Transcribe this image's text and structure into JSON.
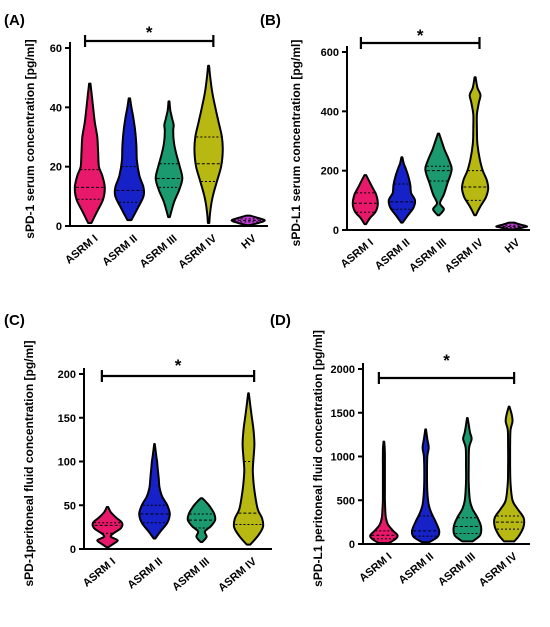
{
  "figure": {
    "colors": {
      "ASRM I": "#e8186b",
      "ASRM II": "#1622c8",
      "ASRM III": "#1a9a6e",
      "ASRM IV": "#b8b812",
      "HV": "#c03ed6"
    }
  },
  "chart_data": [
    {
      "panel": "(A)",
      "type": "violin",
      "ylabel": "sPD-1 serum concentration [pg/ml]",
      "yticks": [
        0,
        20,
        40,
        60
      ],
      "ylim": [
        0,
        60
      ],
      "significance": "*",
      "categories": [
        "ASRM I",
        "ASRM II",
        "ASRM III",
        "ASRM IV",
        "HV"
      ],
      "violins": [
        {
          "category": "ASRM I",
          "min": 1,
          "max": 48,
          "median": 13,
          "q1": 9,
          "q3": 19,
          "profile": [
            [
              1,
              0.1
            ],
            [
              5,
              0.45
            ],
            [
              9,
              0.8
            ],
            [
              13,
              0.9
            ],
            [
              17,
              0.75
            ],
            [
              20,
              0.55
            ],
            [
              25,
              0.5
            ],
            [
              30,
              0.45
            ],
            [
              35,
              0.3
            ],
            [
              40,
              0.2
            ],
            [
              45,
              0.1
            ],
            [
              48,
              0.04
            ]
          ]
        },
        {
          "category": "ASRM II",
          "min": 2,
          "max": 43,
          "median": 12,
          "q1": 8,
          "q3": 20,
          "profile": [
            [
              2,
              0.12
            ],
            [
              6,
              0.5
            ],
            [
              10,
              0.85
            ],
            [
              13,
              0.85
            ],
            [
              17,
              0.6
            ],
            [
              22,
              0.45
            ],
            [
              27,
              0.42
            ],
            [
              32,
              0.35
            ],
            [
              37,
              0.22
            ],
            [
              40,
              0.12
            ],
            [
              43,
              0.04
            ]
          ]
        },
        {
          "category": "ASRM III",
          "min": 3,
          "max": 42,
          "median": 16,
          "q1": 13,
          "q3": 21,
          "profile": [
            [
              3,
              0.05
            ],
            [
              8,
              0.3
            ],
            [
              12,
              0.6
            ],
            [
              16,
              0.8
            ],
            [
              20,
              0.65
            ],
            [
              24,
              0.45
            ],
            [
              28,
              0.3
            ],
            [
              32,
              0.25
            ],
            [
              34,
              0.28
            ],
            [
              36,
              0.2
            ],
            [
              39,
              0.08
            ],
            [
              42,
              0.03
            ]
          ]
        },
        {
          "category": "ASRM IV",
          "min": 1,
          "max": 54,
          "median": 21,
          "q1": 15,
          "q3": 30,
          "profile": [
            [
              1,
              0.04
            ],
            [
              5,
              0.1
            ],
            [
              10,
              0.25
            ],
            [
              15,
              0.5
            ],
            [
              20,
              0.75
            ],
            [
              25,
              0.85
            ],
            [
              30,
              0.8
            ],
            [
              35,
              0.6
            ],
            [
              40,
              0.4
            ],
            [
              45,
              0.22
            ],
            [
              50,
              0.1
            ],
            [
              54,
              0.03
            ]
          ]
        },
        {
          "category": "HV",
          "min": 0.3,
          "max": 3.5,
          "median": 1.9,
          "q1": 1.4,
          "q3": 2.4,
          "profile": [
            [
              0.3,
              0.1
            ],
            [
              1,
              0.6
            ],
            [
              1.9,
              1.0
            ],
            [
              2.7,
              0.6
            ],
            [
              3.5,
              0.1
            ]
          ]
        }
      ]
    },
    {
      "panel": "(B)",
      "type": "violin",
      "ylabel": "sPD-L1 serum concentration [pg/ml]",
      "yticks": [
        0,
        200,
        400,
        600
      ],
      "ylim": [
        0,
        600
      ],
      "significance": "*",
      "categories": [
        "ASRM I",
        "ASRM II",
        "ASRM III",
        "ASRM IV",
        "HV"
      ],
      "violins": [
        {
          "category": "ASRM I",
          "min": 20,
          "max": 185,
          "median": 90,
          "q1": 60,
          "q3": 125,
          "profile": [
            [
              20,
              0.05
            ],
            [
              40,
              0.3
            ],
            [
              60,
              0.65
            ],
            [
              80,
              0.8
            ],
            [
              100,
              0.8
            ],
            [
              120,
              0.7
            ],
            [
              140,
              0.5
            ],
            [
              160,
              0.3
            ],
            [
              185,
              0.05
            ]
          ]
        },
        {
          "category": "ASRM II",
          "min": 25,
          "max": 245,
          "median": 95,
          "q1": 70,
          "q3": 155,
          "profile": [
            [
              25,
              0.05
            ],
            [
              50,
              0.4
            ],
            [
              75,
              0.75
            ],
            [
              100,
              0.85
            ],
            [
              125,
              0.6
            ],
            [
              150,
              0.55
            ],
            [
              175,
              0.45
            ],
            [
              200,
              0.3
            ],
            [
              225,
              0.12
            ],
            [
              245,
              0.03
            ]
          ]
        },
        {
          "category": "ASRM III",
          "min": 50,
          "max": 325,
          "median": 200,
          "q1": 165,
          "q3": 215,
          "profile": [
            [
              50,
              0.05
            ],
            [
              70,
              0.35
            ],
            [
              90,
              0.1
            ],
            [
              120,
              0.35
            ],
            [
              160,
              0.6
            ],
            [
              190,
              0.8
            ],
            [
              210,
              0.85
            ],
            [
              240,
              0.65
            ],
            [
              270,
              0.4
            ],
            [
              300,
              0.2
            ],
            [
              325,
              0.04
            ]
          ]
        },
        {
          "category": "ASRM IV",
          "min": 50,
          "max": 515,
          "median": 145,
          "q1": 100,
          "q3": 200,
          "profile": [
            [
              50,
              0.05
            ],
            [
              80,
              0.35
            ],
            [
              110,
              0.7
            ],
            [
              140,
              0.85
            ],
            [
              170,
              0.75
            ],
            [
              200,
              0.5
            ],
            [
              240,
              0.3
            ],
            [
              290,
              0.15
            ],
            [
              340,
              0.12
            ],
            [
              390,
              0.12
            ],
            [
              430,
              0.25
            ],
            [
              455,
              0.35
            ],
            [
              480,
              0.15
            ],
            [
              515,
              0.03
            ]
          ]
        },
        {
          "category": "HV",
          "min": 2,
          "max": 25,
          "median": 12,
          "q1": 8,
          "q3": 16,
          "profile": [
            [
              2,
              0.15
            ],
            [
              8,
              0.7
            ],
            [
              12,
              1.0
            ],
            [
              18,
              0.6
            ],
            [
              25,
              0.15
            ]
          ]
        }
      ]
    },
    {
      "panel": "(C)",
      "type": "violin",
      "ylabel": "sPD-1peritoneal fluid concentration [pg/ml]",
      "yticks": [
        0,
        50,
        100,
        150,
        200
      ],
      "ylim": [
        0,
        200
      ],
      "significance": "*",
      "categories": [
        "ASRM I",
        "ASRM II",
        "ASRM III",
        "ASRM IV"
      ],
      "violins": [
        {
          "category": "ASRM I",
          "min": 2,
          "max": 48,
          "median": 27,
          "q1": 18,
          "q3": 30,
          "profile": [
            [
              2,
              0.05
            ],
            [
              6,
              0.35
            ],
            [
              10,
              0.6
            ],
            [
              14,
              0.2
            ],
            [
              18,
              0.35
            ],
            [
              24,
              0.8
            ],
            [
              30,
              0.85
            ],
            [
              36,
              0.5
            ],
            [
              42,
              0.2
            ],
            [
              48,
              0.04
            ]
          ]
        },
        {
          "category": "ASRM II",
          "min": 12,
          "max": 120,
          "median": 40,
          "q1": 30,
          "q3": 50,
          "profile": [
            [
              12,
              0.05
            ],
            [
              20,
              0.35
            ],
            [
              30,
              0.75
            ],
            [
              40,
              0.9
            ],
            [
              50,
              0.75
            ],
            [
              60,
              0.45
            ],
            [
              70,
              0.3
            ],
            [
              80,
              0.25
            ],
            [
              90,
              0.2
            ],
            [
              100,
              0.15
            ],
            [
              110,
              0.08
            ],
            [
              120,
              0.02
            ]
          ]
        },
        {
          "category": "ASRM III",
          "min": 8,
          "max": 58,
          "median": 33,
          "q1": 24,
          "q3": 40,
          "profile": [
            [
              8,
              0.05
            ],
            [
              14,
              0.3
            ],
            [
              20,
              0.2
            ],
            [
              26,
              0.55
            ],
            [
              33,
              0.8
            ],
            [
              40,
              0.75
            ],
            [
              47,
              0.55
            ],
            [
              53,
              0.3
            ],
            [
              58,
              0.05
            ]
          ]
        },
        {
          "category": "ASRM IV",
          "min": 5,
          "max": 178,
          "median": 41,
          "q1": 28,
          "q3": 100,
          "profile": [
            [
              5,
              0.1
            ],
            [
              15,
              0.55
            ],
            [
              25,
              0.85
            ],
            [
              35,
              0.8
            ],
            [
              45,
              0.55
            ],
            [
              60,
              0.4
            ],
            [
              75,
              0.3
            ],
            [
              90,
              0.25
            ],
            [
              105,
              0.3
            ],
            [
              120,
              0.35
            ],
            [
              135,
              0.3
            ],
            [
              150,
              0.2
            ],
            [
              165,
              0.1
            ],
            [
              178,
              0.02
            ]
          ]
        }
      ]
    },
    {
      "panel": "(D)",
      "type": "violin",
      "ylabel": "sPD-L1 peritoneal fluid concentration [pg/ml]",
      "yticks": [
        0,
        500,
        1000,
        1500,
        2000
      ],
      "ylim": [
        0,
        2000
      ],
      "significance": "*",
      "categories": [
        "ASRM I",
        "ASRM II",
        "ASRM III",
        "ASRM IV"
      ],
      "violins": [
        {
          "category": "ASRM I",
          "min": 10,
          "max": 1170,
          "median": 100,
          "q1": 60,
          "q3": 150,
          "profile": [
            [
              10,
              0.3
            ],
            [
              60,
              0.7
            ],
            [
              100,
              0.8
            ],
            [
              150,
              0.55
            ],
            [
              220,
              0.25
            ],
            [
              300,
              0.12
            ],
            [
              400,
              0.08
            ],
            [
              500,
              0.06
            ],
            [
              600,
              0.06
            ],
            [
              700,
              0.06
            ],
            [
              800,
              0.06
            ],
            [
              900,
              0.06
            ],
            [
              1000,
              0.06
            ],
            [
              1100,
              0.05
            ],
            [
              1170,
              0.02
            ]
          ]
        },
        {
          "category": "ASRM II",
          "min": 20,
          "max": 1310,
          "median": 150,
          "q1": 90,
          "q3": 320,
          "profile": [
            [
              20,
              0.2
            ],
            [
              80,
              0.7
            ],
            [
              150,
              0.8
            ],
            [
              250,
              0.6
            ],
            [
              350,
              0.35
            ],
            [
              450,
              0.18
            ],
            [
              600,
              0.1
            ],
            [
              800,
              0.08
            ],
            [
              1000,
              0.1
            ],
            [
              1100,
              0.18
            ],
            [
              1200,
              0.1
            ],
            [
              1310,
              0.02
            ]
          ]
        },
        {
          "category": "ASRM III",
          "min": 30,
          "max": 1440,
          "median": 200,
          "q1": 120,
          "q3": 300,
          "profile": [
            [
              30,
              0.3
            ],
            [
              100,
              0.75
            ],
            [
              200,
              0.8
            ],
            [
              300,
              0.6
            ],
            [
              400,
              0.3
            ],
            [
              500,
              0.15
            ],
            [
              700,
              0.08
            ],
            [
              900,
              0.08
            ],
            [
              1100,
              0.1
            ],
            [
              1200,
              0.25
            ],
            [
              1280,
              0.15
            ],
            [
              1440,
              0.02
            ]
          ]
        },
        {
          "category": "ASRM IV",
          "min": 30,
          "max": 1570,
          "median": 250,
          "q1": 170,
          "q3": 320,
          "profile": [
            [
              30,
              0.3
            ],
            [
              100,
              0.6
            ],
            [
              200,
              0.85
            ],
            [
              300,
              0.85
            ],
            [
              400,
              0.5
            ],
            [
              500,
              0.2
            ],
            [
              700,
              0.08
            ],
            [
              900,
              0.06
            ],
            [
              1100,
              0.06
            ],
            [
              1300,
              0.08
            ],
            [
              1400,
              0.2
            ],
            [
              1480,
              0.15
            ],
            [
              1570,
              0.02
            ]
          ]
        }
      ]
    }
  ]
}
